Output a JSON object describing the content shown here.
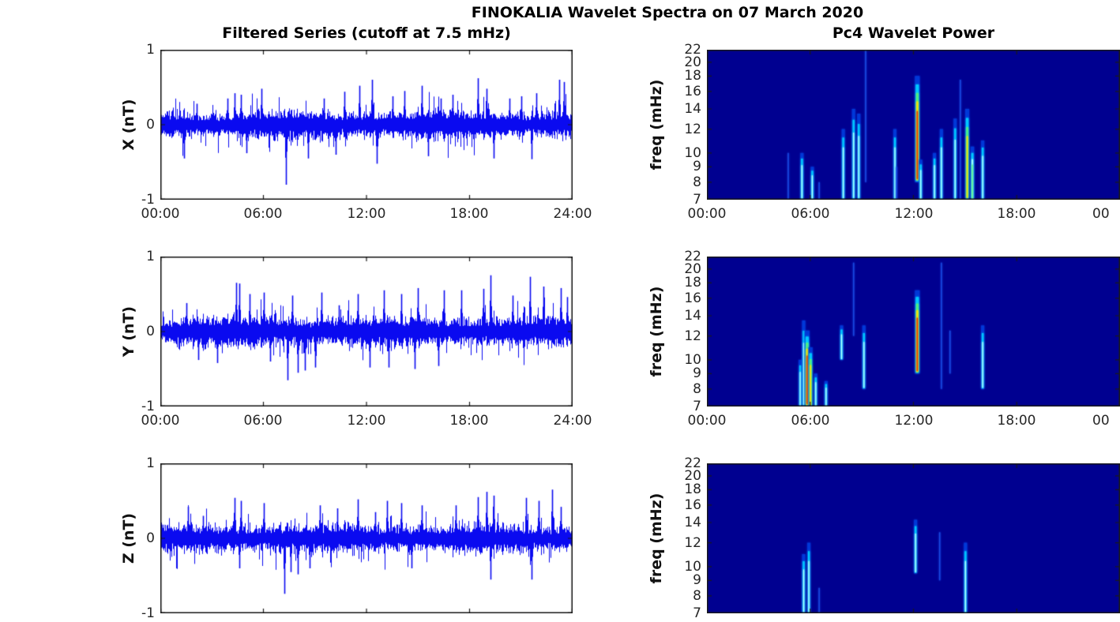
{
  "figure": {
    "title": "FINOKALIA Wavelet Spectra on 07 March 2020"
  },
  "left_column": {
    "title": "Filtered Series (cutoff at 7.5 mHz)",
    "x_ticks": [
      "00:00",
      "06:00",
      "12:00",
      "18:00",
      "24:00"
    ],
    "y_ticks": [
      "1",
      "0",
      "-1"
    ],
    "panels": [
      {
        "ylabel": "X (nT)"
      },
      {
        "ylabel": "Y (nT)"
      },
      {
        "ylabel": "Z (nT)"
      }
    ]
  },
  "right_column": {
    "title": "Pc4 Wavelet Power",
    "ylabel": "freq (mHz)",
    "x_ticks": [
      "00:00",
      "06:00",
      "12:00",
      "18:00",
      "00"
    ],
    "y_ticks": [
      "22",
      "20",
      "18",
      "16",
      "14",
      "12",
      "10",
      "9",
      "8",
      "7"
    ]
  },
  "colors": {
    "line": "#0a0af0",
    "spectro_bg": "#000090",
    "axis": "#1a1a1a",
    "tick_label": "#262626",
    "jet": {
      "outer": "#0038d8",
      "blue": "#1848e0",
      "cyan": "#00c8ff",
      "pale": "#b0ffff",
      "green": "#50f080",
      "yellow": "#ffe000",
      "red": "#f03000"
    }
  },
  "chart_data": [
    {
      "id": "x-series",
      "type": "line",
      "ylabel": "X (nT)",
      "ylim": [
        -1,
        1
      ],
      "x_hours": [
        0,
        24
      ],
      "x_tick_labels": [
        "00:00",
        "06:00",
        "12:00",
        "18:00",
        "24:00"
      ],
      "y_tick_values": [
        1,
        0,
        -1
      ],
      "seed": 11,
      "base_halfwidth": 0.115,
      "spikes": [
        [
          1.4,
          -0.45
        ],
        [
          2.1,
          0.28
        ],
        [
          3.9,
          0.35
        ],
        [
          4.3,
          0.42
        ],
        [
          4.7,
          0.4
        ],
        [
          5.0,
          -0.38
        ],
        [
          5.9,
          0.48
        ],
        [
          7.3,
          -0.8
        ],
        [
          8.6,
          -0.45
        ],
        [
          9.5,
          0.35
        ],
        [
          10.2,
          -0.4
        ],
        [
          10.7,
          0.44
        ],
        [
          11.6,
          0.52
        ],
        [
          12.3,
          0.6
        ],
        [
          12.6,
          -0.52
        ],
        [
          13.5,
          0.38
        ],
        [
          14.2,
          0.45
        ],
        [
          15.2,
          0.52
        ],
        [
          15.6,
          -0.42
        ],
        [
          16.3,
          0.35
        ],
        [
          17.0,
          0.4
        ],
        [
          18.5,
          0.62
        ],
        [
          19.0,
          0.48
        ],
        [
          19.4,
          -0.45
        ],
        [
          20.3,
          0.35
        ],
        [
          21.0,
          0.38
        ],
        [
          21.6,
          -0.46
        ],
        [
          21.9,
          0.42
        ],
        [
          23.2,
          0.6
        ],
        [
          23.5,
          0.57
        ]
      ]
    },
    {
      "id": "y-series",
      "type": "line",
      "ylabel": "Y (nT)",
      "ylim": [
        -1,
        1
      ],
      "x_hours": [
        0,
        24
      ],
      "x_tick_labels": [
        "00:00",
        "06:00",
        "12:00",
        "18:00",
        "24:00"
      ],
      "y_tick_values": [
        1,
        0,
        -1
      ],
      "seed": 22,
      "base_halfwidth": 0.125,
      "spikes": [
        [
          1.5,
          0.38
        ],
        [
          2.2,
          -0.38
        ],
        [
          3.3,
          -0.42
        ],
        [
          4.4,
          0.65
        ],
        [
          4.6,
          0.64
        ],
        [
          5.2,
          0.5
        ],
        [
          6.0,
          0.52
        ],
        [
          6.4,
          -0.4
        ],
        [
          7.4,
          -0.65
        ],
        [
          7.7,
          0.48
        ],
        [
          8.0,
          -0.55
        ],
        [
          8.4,
          -0.52
        ],
        [
          9.0,
          -0.48
        ],
        [
          9.4,
          0.52
        ],
        [
          10.4,
          0.35
        ],
        [
          11.5,
          0.5
        ],
        [
          12.2,
          -0.48
        ],
        [
          13.0,
          0.55
        ],
        [
          13.3,
          -0.48
        ],
        [
          14.0,
          0.5
        ],
        [
          14.8,
          -0.5
        ],
        [
          15.0,
          0.58
        ],
        [
          16.2,
          -0.46
        ],
        [
          16.5,
          0.55
        ],
        [
          17.5,
          0.55
        ],
        [
          18.8,
          0.57
        ],
        [
          19.2,
          0.75
        ],
        [
          20.5,
          0.48
        ],
        [
          21.5,
          0.73
        ],
        [
          22.3,
          0.6
        ],
        [
          23.3,
          0.58
        ],
        [
          23.7,
          0.46
        ]
      ]
    },
    {
      "id": "z-series",
      "type": "line",
      "ylabel": "Z (nT)",
      "ylim": [
        -1,
        1
      ],
      "x_hours": [
        0,
        24
      ],
      "x_tick_labels": [
        "00:00",
        "06:00",
        "12:00",
        "18:00",
        "24:00"
      ],
      "y_tick_values": [
        1,
        0,
        -1
      ],
      "seed": 33,
      "base_halfwidth": 0.115,
      "spikes": [
        [
          1.6,
          0.42
        ],
        [
          2.5,
          0.3
        ],
        [
          4.3,
          0.54
        ],
        [
          4.6,
          -0.4
        ],
        [
          4.7,
          0.5
        ],
        [
          6.0,
          0.47
        ],
        [
          7.2,
          -0.74
        ],
        [
          7.6,
          -0.45
        ],
        [
          8.0,
          -0.48
        ],
        [
          8.7,
          -0.4
        ],
        [
          9.3,
          0.44
        ],
        [
          10.3,
          0.4
        ],
        [
          11.5,
          0.52
        ],
        [
          12.5,
          0.35
        ],
        [
          13.2,
          0.5
        ],
        [
          14.0,
          0.47
        ],
        [
          14.6,
          -0.4
        ],
        [
          15.2,
          0.44
        ],
        [
          17.2,
          0.44
        ],
        [
          18.5,
          0.55
        ],
        [
          19.0,
          0.62
        ],
        [
          19.2,
          -0.55
        ],
        [
          19.4,
          0.57
        ],
        [
          21.3,
          0.54
        ],
        [
          21.6,
          -0.55
        ],
        [
          22.0,
          0.5
        ],
        [
          22.8,
          0.65
        ],
        [
          23.3,
          0.42
        ]
      ]
    },
    {
      "id": "x-wavelet",
      "type": "heatmap",
      "ylabel": "freq (mHz)",
      "yscale": "log",
      "ylim": [
        7,
        22
      ],
      "freq_ticks": [
        22,
        20,
        18,
        16,
        14,
        12,
        10,
        9,
        8,
        7
      ],
      "x_hours": [
        0,
        24
      ],
      "x_tick_labels": [
        "00:00",
        "06:00",
        "12:00",
        "18:00",
        "00"
      ],
      "events": [
        [
          4.7,
          7,
          10,
          "blue"
        ],
        [
          5.5,
          7,
          10,
          "cyan"
        ],
        [
          6.1,
          7,
          9,
          "cyan"
        ],
        [
          6.5,
          7,
          8,
          "blue"
        ],
        [
          7.9,
          7,
          12,
          "cyan"
        ],
        [
          8.5,
          7,
          14,
          "cyan"
        ],
        [
          8.8,
          7,
          13.5,
          "cyan"
        ],
        [
          9.2,
          8,
          22,
          "blue"
        ],
        [
          10.9,
          7,
          12,
          "cyan"
        ],
        [
          11.0,
          7,
          9,
          "blue"
        ],
        [
          12.2,
          8,
          18,
          "red"
        ],
        [
          12.4,
          7,
          9.5,
          "cyan"
        ],
        [
          13.2,
          7,
          10,
          "cyan"
        ],
        [
          13.6,
          7,
          12,
          "cyan"
        ],
        [
          14.4,
          7,
          13,
          "cyan"
        ],
        [
          14.7,
          7,
          17.5,
          "blue"
        ],
        [
          15.1,
          7,
          14,
          "yellow"
        ],
        [
          15.4,
          7,
          10.5,
          "green"
        ],
        [
          16.0,
          7,
          11,
          "cyan"
        ]
      ]
    },
    {
      "id": "y-wavelet",
      "type": "heatmap",
      "ylabel": "freq (mHz)",
      "yscale": "log",
      "ylim": [
        7,
        22
      ],
      "freq_ticks": [
        22,
        20,
        18,
        16,
        14,
        12,
        10,
        9,
        8,
        7
      ],
      "x_hours": [
        0,
        24
      ],
      "x_tick_labels": [
        "00:00",
        "06:00",
        "12:00",
        "18:00",
        "00"
      ],
      "events": [
        [
          5.4,
          7,
          10,
          "cyan"
        ],
        [
          5.6,
          7,
          13.5,
          "cyan"
        ],
        [
          5.8,
          7,
          12.5,
          "red"
        ],
        [
          6.0,
          7,
          11,
          "yellow"
        ],
        [
          6.3,
          7,
          9,
          "cyan"
        ],
        [
          6.9,
          7,
          8.5,
          "cyan"
        ],
        [
          7.8,
          10,
          13,
          "cyan"
        ],
        [
          8.5,
          12,
          21,
          "blue"
        ],
        [
          9.1,
          8,
          13,
          "cyan"
        ],
        [
          12.2,
          9,
          17,
          "red"
        ],
        [
          13.6,
          8,
          21,
          "blue"
        ],
        [
          14.1,
          9,
          12.5,
          "blue"
        ],
        [
          16.0,
          8,
          13,
          "cyan"
        ]
      ]
    },
    {
      "id": "z-wavelet",
      "type": "heatmap",
      "ylabel": "freq (mHz)",
      "yscale": "log",
      "ylim": [
        7,
        22
      ],
      "freq_ticks": [
        22,
        20,
        18,
        16,
        14,
        12,
        10,
        9,
        8,
        7
      ],
      "x_hours": [
        0,
        24
      ],
      "x_tick_labels": [
        "00:00",
        "06:00",
        "12:00",
        "18:00",
        "00"
      ],
      "events": [
        [
          5.6,
          7,
          11,
          "cyan"
        ],
        [
          5.9,
          7,
          12,
          "cyan"
        ],
        [
          6.5,
          7,
          8.5,
          "blue"
        ],
        [
          12.1,
          9.5,
          14.3,
          "cyan"
        ],
        [
          13.5,
          9,
          13,
          "blue"
        ],
        [
          15.0,
          7,
          12,
          "cyan"
        ]
      ]
    }
  ]
}
